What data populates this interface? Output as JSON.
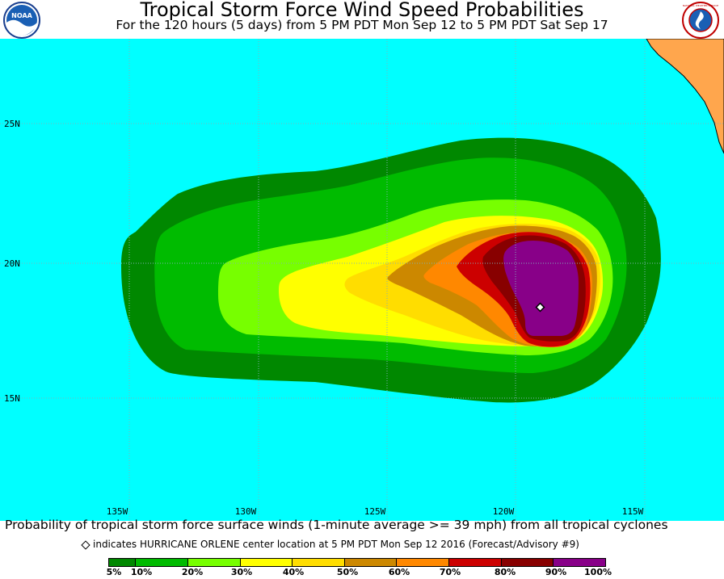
{
  "header": {
    "title": "Tropical Storm Force Wind Speed Probabilities",
    "subtitle": "For the 120 hours (5 days) from 5 PM PDT Mon Sep 12 to 5 PM PDT Sat Sep 17",
    "left_logo_text": "NOAA",
    "right_logo_text": "NATIONAL WEATHER SERVICE"
  },
  "map": {
    "longitude_labels": [
      "135W",
      "130W",
      "125W",
      "120W",
      "115W"
    ],
    "latitude_labels": [
      "25N",
      "20N",
      "15N"
    ],
    "colors": {
      "ocean": "#00ffff",
      "land": "#ffa64d",
      "grid": "#7fb0b8"
    },
    "storm_center_marker": "hurricane-orlene-center"
  },
  "footer": {
    "caption": "Probability of tropical storm force surface winds (1-minute average >= 39 mph) from all tropical cyclones",
    "note": "indicates HURRICANE ORLENE center location at 5 PM PDT Mon Sep 12 2016 (Forecast/Advisory #9)",
    "legend": [
      {
        "label": "5%",
        "color": "#008800"
      },
      {
        "label": "10%",
        "color": "#00bb00"
      },
      {
        "label": "20%",
        "color": "#77ff00"
      },
      {
        "label": "30%",
        "color": "#ffff00"
      },
      {
        "label": "40%",
        "color": "#ffdd00"
      },
      {
        "label": "50%",
        "color": "#cc8800"
      },
      {
        "label": "60%",
        "color": "#ff8800"
      },
      {
        "label": "70%",
        "color": "#cc0000"
      },
      {
        "label": "80%",
        "color": "#880000"
      },
      {
        "label": "90%",
        "color": "#880088"
      },
      {
        "label": "100%",
        "color": ""
      }
    ]
  }
}
